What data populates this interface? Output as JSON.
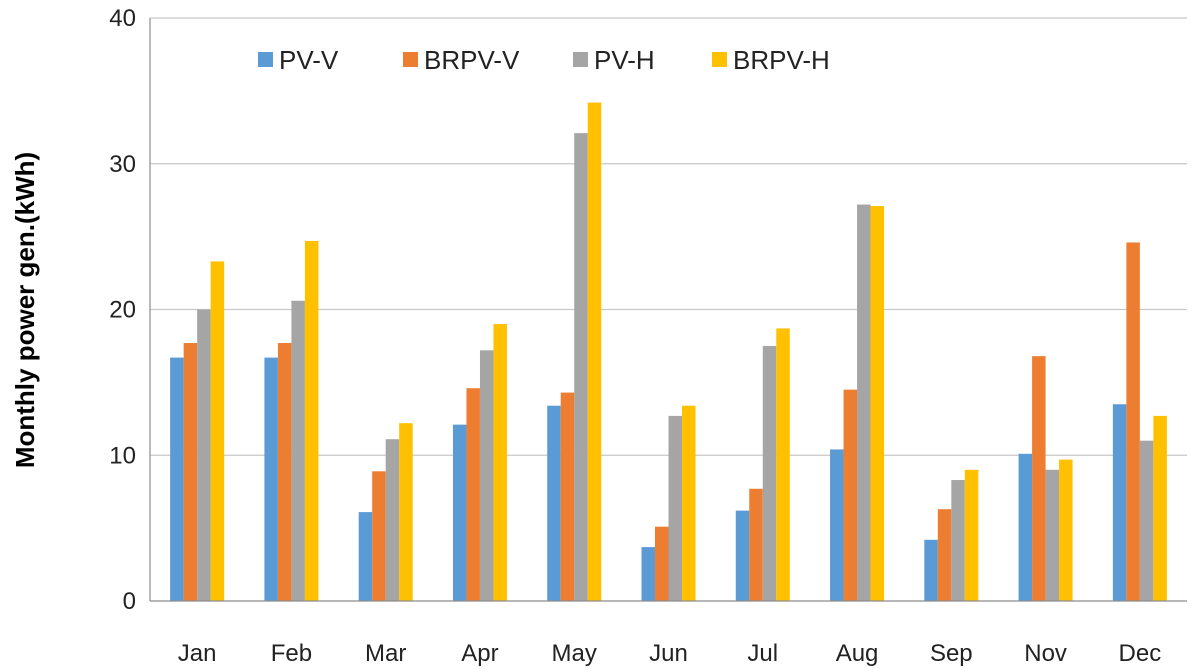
{
  "chart_data": {
    "type": "bar",
    "title": "",
    "xlabel": "",
    "ylabel": "Monthly power gen.(kWh)",
    "ylim": [
      0,
      40
    ],
    "yticks": [
      0,
      10,
      20,
      30,
      40
    ],
    "grid": true,
    "legend_position": "top",
    "categories": [
      "Jan",
      "Feb",
      "Mar",
      "Apr",
      "May",
      "Jun",
      "Jul",
      "Aug",
      "Sep",
      "Nov",
      "Dec"
    ],
    "series": [
      {
        "name": "PV-V",
        "color": "#5b9bd5",
        "values": [
          16.7,
          16.7,
          6.1,
          12.1,
          13.4,
          3.7,
          6.2,
          10.4,
          4.2,
          10.1,
          13.5
        ]
      },
      {
        "name": "BRPV-V",
        "color": "#ed7d31",
        "values": [
          17.7,
          17.7,
          8.9,
          14.6,
          14.3,
          5.1,
          7.7,
          14.5,
          6.3,
          16.8,
          24.6
        ]
      },
      {
        "name": "PV-H",
        "color": "#a5a5a5",
        "values": [
          20.0,
          20.6,
          11.1,
          17.2,
          32.1,
          12.7,
          17.5,
          27.2,
          8.3,
          9.0,
          11.0
        ]
      },
      {
        "name": "BRPV-H",
        "color": "#ffc000",
        "values": [
          23.3,
          24.7,
          12.2,
          19.0,
          34.2,
          13.4,
          18.7,
          27.1,
          9.0,
          9.7,
          12.7
        ]
      }
    ]
  }
}
